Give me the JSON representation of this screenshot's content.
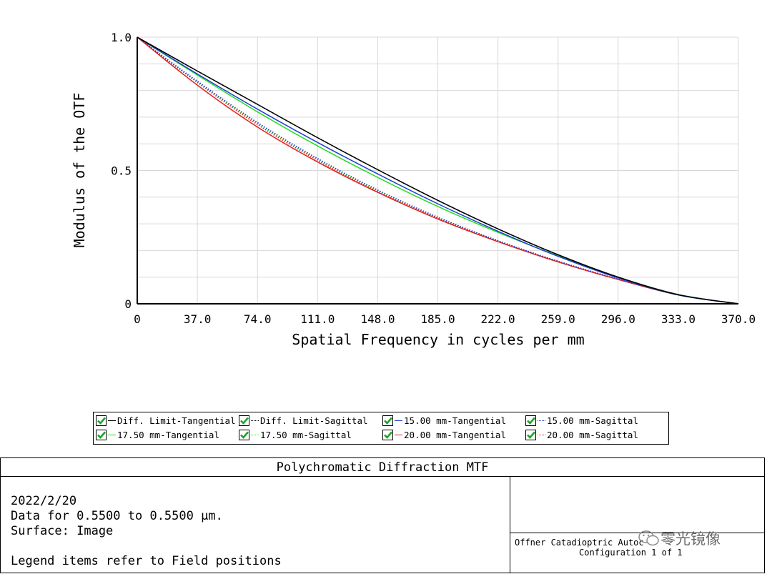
{
  "chart_data": {
    "type": "line",
    "title": "Polychromatic Diffraction MTF",
    "xlabel": "Spatial Frequency in cycles per mm",
    "ylabel": "Modulus of the OTF",
    "xlim": [
      0,
      370
    ],
    "ylim": [
      0,
      1
    ],
    "x_ticks": [
      "0",
      "37.0",
      "74.0",
      "111.0",
      "148.0",
      "185.0",
      "222.0",
      "259.0",
      "296.0",
      "333.0",
      "370.0"
    ],
    "y_ticks": [
      "0",
      "0.5",
      "1.0"
    ],
    "grid": true,
    "x": [
      0,
      37,
      74,
      111,
      148,
      185,
      222,
      259,
      296,
      333,
      370
    ],
    "series": [
      {
        "name": "Diff. Limit-Tangential",
        "color": "#000000",
        "style": "solid",
        "values": [
          1.0,
          0.873,
          0.748,
          0.623,
          0.503,
          0.388,
          0.281,
          0.184,
          0.1,
          0.034,
          0.0
        ]
      },
      {
        "name": "Diff. Limit-Sagittal",
        "color": "#000000",
        "style": "dotted",
        "values": [
          1.0,
          0.873,
          0.748,
          0.623,
          0.503,
          0.388,
          0.281,
          0.184,
          0.1,
          0.034,
          0.0
        ]
      },
      {
        "name": "15.00 mm-Tangential",
        "color": "#1f3fd0",
        "style": "solid",
        "values": [
          1.0,
          0.862,
          0.73,
          0.605,
          0.487,
          0.375,
          0.272,
          0.178,
          0.097,
          0.033,
          0.0
        ]
      },
      {
        "name": "15.00 mm-Sagittal",
        "color": "#1f3fd0",
        "style": "dotted",
        "values": [
          1.0,
          0.835,
          0.68,
          0.545,
          0.427,
          0.325,
          0.237,
          0.16,
          0.093,
          0.034,
          0.0
        ]
      },
      {
        "name": "17.50 mm-Tangential",
        "color": "#22dd22",
        "style": "solid",
        "values": [
          1.0,
          0.858,
          0.72,
          0.592,
          0.474,
          0.365,
          0.268,
          0.18,
          0.1,
          0.035,
          0.0
        ]
      },
      {
        "name": "17.50 mm-Sagittal",
        "color": "#22dd22",
        "style": "dotted",
        "values": [
          1.0,
          0.833,
          0.677,
          0.542,
          0.424,
          0.323,
          0.236,
          0.159,
          0.092,
          0.034,
          0.0
        ]
      },
      {
        "name": "20.00 mm-Tangential",
        "color": "#e02020",
        "style": "solid",
        "values": [
          1.0,
          0.82,
          0.663,
          0.532,
          0.418,
          0.318,
          0.233,
          0.157,
          0.091,
          0.033,
          0.0
        ]
      },
      {
        "name": "20.00 mm-Sagittal",
        "color": "#e02020",
        "style": "dotted",
        "values": [
          1.0,
          0.83,
          0.672,
          0.538,
          0.421,
          0.321,
          0.235,
          0.159,
          0.092,
          0.034,
          0.0
        ]
      }
    ]
  },
  "info": {
    "title": "Polychromatic Diffraction MTF",
    "date": "2022/2/20",
    "data_range": "Data for 0.5500 to 0.5500 µm.",
    "surface": "Surface: Image",
    "legend_note": "Legend items refer to Field positions",
    "system_name": "Offner Catadioptric Autoc",
    "configuration": "Configuration 1 of 1"
  },
  "watermark": "零光镜像"
}
